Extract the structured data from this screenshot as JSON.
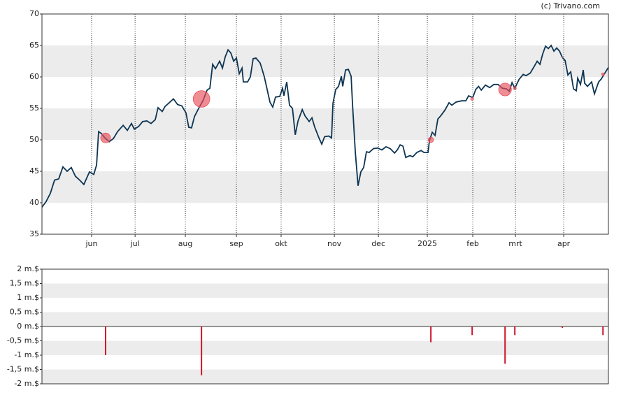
{
  "chart_data": [
    {
      "type": "line",
      "credit": "(c) Trivano.com",
      "color": "#0d3553",
      "x": [
        2,
        4.7,
        7.4,
        10.1,
        12.8,
        15.5,
        18.2,
        20.9,
        23.6,
        26.3,
        29,
        32.6,
        35.4,
        37.2,
        38.5,
        40.3,
        42.6,
        45.3,
        48,
        50.7,
        54.3,
        57,
        59.7,
        61.5,
        64.2,
        66.9,
        69.6,
        72.3,
        75,
        76.8,
        79.5,
        81.3,
        84,
        86.7,
        89.4,
        92.1,
        94.8,
        96.6,
        98.4,
        100.3,
        103,
        105.7,
        108.4,
        110.2,
        112,
        113.8,
        116.5,
        118.3,
        120.1,
        121.9,
        123.7,
        125.5,
        127.3,
        129.1,
        130.9,
        131.8,
        134.5,
        136.3,
        138.1,
        139.9,
        142.6,
        143.5,
        145.3,
        147.1,
        148.9,
        150.7,
        152.5,
        155.2,
        157,
        157.9,
        159.7,
        161.5,
        163.4,
        165.2,
        167,
        169.7,
        171.5,
        174.2,
        176,
        177.8,
        180.5,
        182.3,
        184.1,
        186.8,
        188.6,
        189.5,
        191.3,
        193.1,
        194.9,
        195.8,
        197.6,
        199.4,
        201.2,
        202.1,
        203.9,
        205.7,
        207.5,
        209.3,
        211.1,
        212.9,
        215.6,
        218.3,
        221,
        223.7,
        226.4,
        229.2,
        231,
        232.8,
        234.6,
        236.4,
        239.1,
        240.9,
        243.6,
        246.3,
        248.1,
        250.8,
        251.7,
        253.5,
        255.3,
        257.1,
        258.9,
        261.6,
        264.3,
        266.1,
        268.8,
        272.4,
        275.1,
        276.9,
        279.6,
        281.5,
        283.3,
        285.1,
        287.8,
        290.5,
        293.2,
        295.9,
        298.6,
        301.3,
        303.1,
        304.9,
        306.7,
        309.4,
        312.1,
        313.9,
        316.6,
        319.3,
        321.1,
        322.9,
        324.6,
        326.5,
        328.3,
        330.1,
        331.9,
        333.7,
        335.5,
        337.3,
        339.1,
        340.9,
        342.7,
        344.5,
        346.3,
        347.2,
        349,
        350.8,
        351.7,
        353.5,
        356.2,
        358,
        360.7,
        362.5,
        365.2,
        367
      ],
      "values": [
        39.3,
        40.2,
        41.5,
        43.6,
        43.8,
        45.7,
        45,
        45.6,
        44.2,
        43.6,
        42.9,
        44.9,
        44.5,
        46,
        51.3,
        51,
        50.3,
        49.7,
        50.2,
        51.3,
        52.3,
        51.5,
        52.6,
        51.7,
        52.1,
        52.9,
        53,
        52.6,
        53.2,
        55.1,
        54.5,
        55.3,
        55.9,
        56.5,
        55.6,
        55.4,
        54.3,
        52,
        51.9,
        53.7,
        55,
        56.2,
        57.9,
        58.2,
        62,
        61.3,
        62.5,
        61.4,
        63.2,
        64.3,
        63.8,
        62.5,
        63,
        60.5,
        61.4,
        59.2,
        59.2,
        60,
        62.9,
        63,
        62.2,
        61.5,
        60,
        58,
        56,
        55.2,
        56.8,
        56.9,
        58.2,
        57,
        59.2,
        55.5,
        55,
        50.8,
        53,
        54.8,
        53.8,
        52.9,
        53.5,
        52,
        50.3,
        49.3,
        50.5,
        50.6,
        50.3,
        55.8,
        58,
        58.5,
        60.1,
        58.5,
        61.1,
        61.2,
        60.1,
        55.6,
        48,
        42.7,
        44.9,
        45.6,
        48.1,
        48,
        48.6,
        48.7,
        48.4,
        48.9,
        48.6,
        47.9,
        48.4,
        49.2,
        49,
        47.2,
        47.5,
        47.3,
        48,
        48.3,
        48,
        48,
        49.9,
        51.2,
        50.7,
        53.3,
        53.8,
        54.7,
        55.9,
        55.5,
        56,
        56.2,
        56.2,
        57,
        56.7,
        58,
        58.5,
        57.9,
        58.7,
        58.3,
        58.8,
        58.8,
        58.2,
        58.1,
        57.7,
        59.1,
        58.2,
        59.6,
        60.4,
        60.2,
        60.6,
        61.7,
        62.5,
        62,
        63.6,
        64.9,
        64.5,
        65,
        64.1,
        64.6,
        64.1,
        63.1,
        62.6,
        60.3,
        60.8,
        58.1,
        57.8,
        59.8,
        58.8,
        61.1,
        59,
        58.5,
        59.2,
        57.3,
        59.2,
        59.7,
        60.8,
        61.5
      ],
      "bubbles": {
        "color": "#e8505b",
        "x": [
          43,
          104.8,
          252.6,
          279.2,
          300.4,
          306.7,
          337.3,
          363.5
        ],
        "y": [
          50.3,
          56.5,
          50,
          56.5,
          58,
          58.2,
          63.1,
          60.4
        ],
        "size": [
          -1,
          -1.7,
          -0.55,
          -0.3,
          -1.3,
          -0.3,
          -0.05,
          -0.3
        ]
      },
      "xlim": [
        2,
        367
      ],
      "xticks": [
        {
          "value": 34,
          "label": "jun"
        },
        {
          "value": 62,
          "label": "jul"
        },
        {
          "value": 94.4,
          "label": "aug"
        },
        {
          "value": 127.3,
          "label": "sep"
        },
        {
          "value": 156.1,
          "label": "okt"
        },
        {
          "value": 190.4,
          "label": "nov"
        },
        {
          "value": 218.8,
          "label": "dec"
        },
        {
          "value": 250.3,
          "label": "2025"
        },
        {
          "value": 279.6,
          "label": "feb"
        },
        {
          "value": 307.1,
          "label": "mrt"
        },
        {
          "value": 338.2,
          "label": "apr"
        }
      ],
      "ylim": [
        35,
        70
      ],
      "yticks": [
        35,
        40,
        45,
        50,
        55,
        60,
        65,
        70
      ]
    },
    {
      "type": "bar",
      "color": "#d0142c",
      "x": [
        43,
        104.8,
        252.6,
        279.2,
        300.4,
        306.7,
        337.3,
        363.5
      ],
      "values": [
        -1,
        -1.7,
        -0.55,
        -0.3,
        -1.3,
        -0.3,
        -0.05,
        -0.3
      ],
      "xlim": [
        2,
        367
      ],
      "ylim": [
        -2,
        2
      ],
      "yticks": [
        {
          "value": 2,
          "label": "2 m.$"
        },
        {
          "value": 1.5,
          "label": "1,5 m.$"
        },
        {
          "value": 1,
          "label": "1 m.$"
        },
        {
          "value": 0.5,
          "label": "0,5 m.$"
        },
        {
          "value": 0,
          "label": "0 m.$"
        },
        {
          "value": -0.5,
          "label": "-0,5 m.$"
        },
        {
          "value": -1,
          "label": "-1 m.$"
        },
        {
          "value": -1.5,
          "label": "-1,5 m.$"
        },
        {
          "value": -2,
          "label": "-2 m.$"
        }
      ]
    }
  ]
}
